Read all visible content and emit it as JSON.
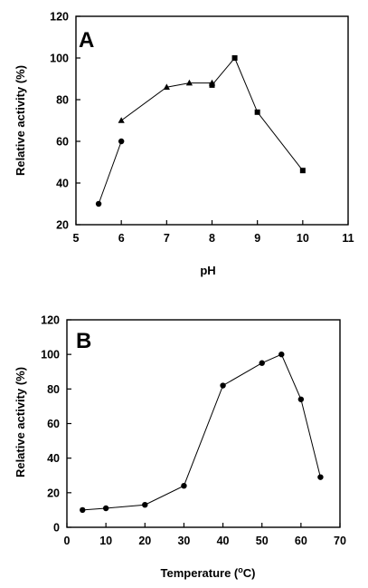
{
  "chart_data": [
    {
      "type": "line",
      "panel_label": "A",
      "title": "",
      "xlabel": "pH",
      "ylabel": "Relative activity (%)",
      "xlim": [
        5,
        11
      ],
      "ylim": [
        20,
        120
      ],
      "xticks": [
        5,
        6,
        7,
        8,
        9,
        10,
        11
      ],
      "yticks": [
        20,
        40,
        60,
        80,
        100,
        120
      ],
      "grid": false,
      "series": [
        {
          "marker": "circle",
          "x": [
            5.5,
            6
          ],
          "y": [
            30,
            60
          ]
        },
        {
          "marker": "triangle",
          "x": [
            6,
            7,
            7.5,
            8
          ],
          "y": [
            70,
            86,
            88,
            88
          ]
        },
        {
          "marker": "square",
          "x": [
            8,
            8.5,
            9,
            10
          ],
          "y": [
            87,
            100,
            74,
            46
          ]
        }
      ]
    },
    {
      "type": "line",
      "panel_label": "B",
      "title": "",
      "xlabel": "Temperature (",
      "xlabel_sup": "o",
      "xlabel_suffix": "C)",
      "ylabel": "Relative activity (%)",
      "xlim": [
        0,
        70
      ],
      "ylim": [
        0,
        120
      ],
      "xticks": [
        0,
        10,
        20,
        30,
        40,
        50,
        60,
        70
      ],
      "yticks": [
        0,
        20,
        40,
        60,
        80,
        100,
        120
      ],
      "grid": false,
      "series": [
        {
          "marker": "circle",
          "x": [
            4,
            10,
            20,
            30,
            40,
            50,
            55,
            60,
            65
          ],
          "y": [
            10,
            11,
            13,
            24,
            82,
            95,
            100,
            74,
            29
          ]
        }
      ]
    }
  ]
}
